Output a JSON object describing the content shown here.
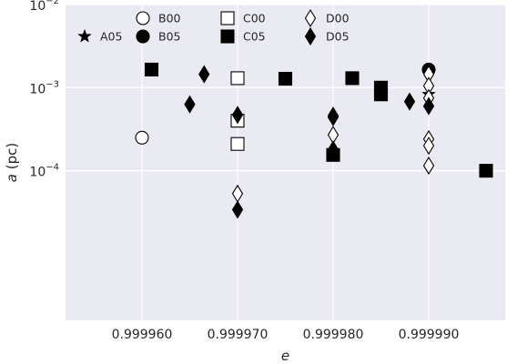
{
  "chart_data": {
    "type": "scatter",
    "xlabel": "e",
    "ylabel_italic": "a",
    "ylabel_unit": " (pc)",
    "xlim": [
      0.999952,
      0.999998
    ],
    "ylim_log10": [
      -5.8,
      -2.0
    ],
    "y_scale": "log",
    "grid": true,
    "background": "#eaeaf2",
    "x_ticks": [
      {
        "value": 0.99996,
        "label": "0.999960"
      },
      {
        "value": 0.99997,
        "label": "0.999970"
      },
      {
        "value": 0.99998,
        "label": "0.999980"
      },
      {
        "value": 0.99999,
        "label": "0.999990"
      }
    ],
    "y_ticks": [
      {
        "log": -4,
        "base": "10",
        "exp": "−4"
      },
      {
        "log": -3,
        "base": "10",
        "exp": "−3"
      },
      {
        "log": -2,
        "base": "10",
        "exp": "−2"
      }
    ],
    "legend_position": "top-left",
    "series": [
      {
        "name": "A05",
        "marker": "star",
        "filled": true,
        "points": [
          {
            "x": 0.99999,
            "y": 0.00083
          }
        ]
      },
      {
        "name": "B00",
        "marker": "circle",
        "filled": false,
        "points": [
          {
            "x": 0.99996,
            "y": 0.00025
          }
        ]
      },
      {
        "name": "B05",
        "marker": "circle",
        "filled": true,
        "points": [
          {
            "x": 0.99999,
            "y": 0.00165
          }
        ]
      },
      {
        "name": "C00",
        "marker": "square",
        "filled": false,
        "points": [
          {
            "x": 0.99997,
            "y": 0.0013
          },
          {
            "x": 0.99997,
            "y": 0.0004
          },
          {
            "x": 0.99997,
            "y": 0.00021
          }
        ]
      },
      {
        "name": "C05",
        "marker": "square",
        "filled": true,
        "points": [
          {
            "x": 0.999961,
            "y": 0.00165
          },
          {
            "x": 0.999975,
            "y": 0.00128
          },
          {
            "x": 0.999982,
            "y": 0.0013
          },
          {
            "x": 0.999985,
            "y": 0.001
          },
          {
            "x": 0.999985,
            "y": 0.00083
          },
          {
            "x": 0.99998,
            "y": 0.000155
          },
          {
            "x": 0.999996,
            "y": 0.0001
          }
        ]
      },
      {
        "name": "D00",
        "marker": "diamond",
        "filled": false,
        "points": [
          {
            "x": 0.99997,
            "y": 5.3e-05
          },
          {
            "x": 0.99998,
            "y": 0.00046
          },
          {
            "x": 0.99998,
            "y": 0.00027
          },
          {
            "x": 0.99999,
            "y": 0.00145
          },
          {
            "x": 0.99999,
            "y": 0.00105
          },
          {
            "x": 0.99999,
            "y": 0.00075
          },
          {
            "x": 0.99999,
            "y": 0.00024
          },
          {
            "x": 0.99999,
            "y": 0.0002
          },
          {
            "x": 0.99999,
            "y": 0.000115
          }
        ]
      },
      {
        "name": "D05",
        "marker": "diamond",
        "filled": true,
        "points": [
          {
            "x": 0.999965,
            "y": 0.00063
          },
          {
            "x": 0.9999665,
            "y": 0.00145
          },
          {
            "x": 0.99997,
            "y": 0.00047
          },
          {
            "x": 0.99997,
            "y": 3.4e-05
          },
          {
            "x": 0.99998,
            "y": 0.00044
          },
          {
            "x": 0.99998,
            "y": 0.00018
          },
          {
            "x": 0.999988,
            "y": 0.00068
          },
          {
            "x": 0.99999,
            "y": 0.0006
          }
        ]
      }
    ],
    "legend": {
      "columns": [
        [
          "",
          "A05"
        ],
        [
          "B00",
          "B05"
        ],
        [
          "C00",
          "C05"
        ],
        [
          "D00",
          "D05"
        ]
      ]
    }
  }
}
